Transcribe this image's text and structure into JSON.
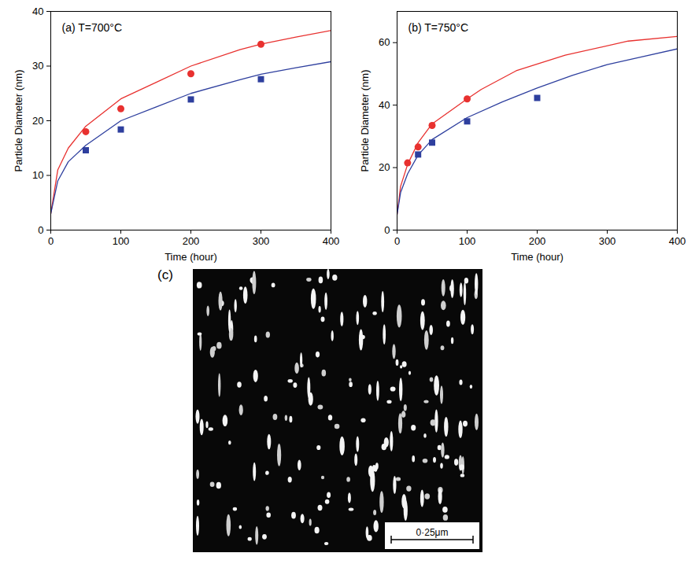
{
  "chart_data": [
    {
      "type": "scatter",
      "title": "(a) T=700°C",
      "x_label": "Time (hour)",
      "y_label": "Particle Diameter (nm)",
      "xlim": [
        0,
        400
      ],
      "xticks": [
        0,
        100,
        200,
        300,
        400
      ],
      "ylim": [
        0,
        40
      ],
      "yticks": [
        0,
        10,
        20,
        30,
        40
      ],
      "grid": false,
      "series": [
        {
          "type": "line",
          "color": "#e8312f",
          "line_style": "solid",
          "x": [
            0,
            10,
            25,
            50,
            100,
            150,
            200,
            270,
            300,
            350,
            400
          ],
          "values": [
            3,
            11,
            15,
            19,
            24,
            27,
            30,
            33,
            34,
            35.3,
            36.5
          ]
        },
        {
          "type": "line",
          "color": "#2e3f9e",
          "line_style": "solid",
          "x": [
            0,
            10,
            25,
            50,
            100,
            150,
            200,
            270,
            300,
            350,
            400
          ],
          "values": [
            3,
            9,
            12.5,
            15.5,
            20,
            22.5,
            25,
            27.5,
            28.5,
            29.7,
            30.8
          ]
        },
        {
          "type": "scatter",
          "color": "#e8312f",
          "marker": "circle",
          "x": [
            50,
            100,
            200,
            300
          ],
          "values": [
            18,
            22.2,
            28.6,
            34
          ]
        },
        {
          "type": "scatter",
          "color": "#2e3f9e",
          "marker": "square",
          "x": [
            50,
            100,
            200,
            300
          ],
          "values": [
            14.6,
            18.4,
            23.9,
            27.6
          ]
        }
      ]
    },
    {
      "type": "scatter",
      "title": "(b) T=750°C",
      "x_label": "Time (hour)",
      "y_label": "Particle Diameter (nm)",
      "xlim": [
        0,
        400
      ],
      "xticks": [
        0,
        100,
        200,
        300,
        400
      ],
      "ylim": [
        0,
        70
      ],
      "yticks": [
        0,
        20,
        40,
        60
      ],
      "grid": false,
      "series": [
        {
          "type": "line",
          "color": "#e8312f",
          "line_style": "solid",
          "x": [
            0,
            5,
            15,
            30,
            50,
            100,
            120,
            170,
            240,
            330,
            400
          ],
          "values": [
            5,
            14,
            21,
            28,
            34,
            42,
            45,
            51,
            56,
            60.5,
            62
          ]
        },
        {
          "type": "line",
          "color": "#2e3f9e",
          "line_style": "solid",
          "x": [
            0,
            5,
            15,
            30,
            50,
            100,
            150,
            200,
            250,
            300,
            350,
            400
          ],
          "values": [
            5,
            12,
            18,
            24,
            29,
            36,
            41,
            45.5,
            49.5,
            53,
            55.5,
            58
          ]
        },
        {
          "type": "scatter",
          "color": "#e8312f",
          "marker": "circle",
          "x": [
            15,
            30,
            50,
            100
          ],
          "values": [
            21.5,
            26.6,
            33.5,
            42
          ]
        },
        {
          "type": "scatter",
          "color": "#2e3f9e",
          "marker": "square",
          "x": [
            30,
            50,
            100,
            200
          ],
          "values": [
            24.2,
            28,
            34.8,
            42.3
          ]
        }
      ]
    }
  ],
  "micrograph": {
    "label": "(c)",
    "scale_bar": "0·25μm"
  }
}
